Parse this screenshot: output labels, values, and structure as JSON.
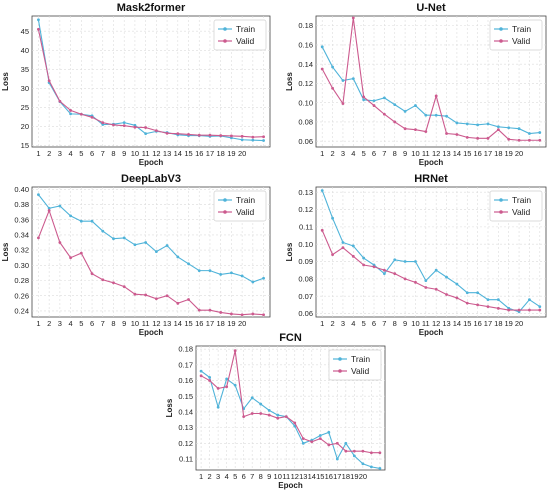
{
  "colors": {
    "train": "#4fb3d9",
    "valid": "#cc5a8e",
    "grid": "#dcdcdc"
  },
  "chart_data": [
    {
      "type": "line",
      "title": "Mask2former",
      "xlabel": "Epoch",
      "ylabel": "Loss",
      "x": [
        1,
        2,
        3,
        4,
        5,
        6,
        7,
        8,
        9,
        10,
        11,
        12,
        13,
        14,
        15,
        16,
        17,
        18,
        19,
        20,
        21,
        22
      ],
      "x_tick_labels": [
        "1",
        "2",
        "3",
        "4",
        "5",
        "6",
        "7",
        "8",
        "9",
        "10",
        "11",
        "12",
        "13",
        "14",
        "15",
        "16",
        "17",
        "18",
        "19",
        "20",
        "",
        ""
      ],
      "yticks": [
        15,
        20,
        25,
        30,
        35,
        40,
        45
      ],
      "ylim": [
        14.6,
        49
      ],
      "grid": true,
      "legend": "top-right",
      "series": [
        {
          "name": "Train",
          "values": [
            48,
            31.5,
            26.5,
            23.3,
            23.2,
            22.8,
            20.5,
            20.6,
            21,
            20.3,
            18.1,
            18.7,
            18.4,
            17.8,
            17.6,
            17.6,
            17.4,
            17.5,
            17,
            16.5,
            16.4,
            16.3
          ]
        },
        {
          "name": "Valid",
          "values": [
            45.5,
            32,
            26.6,
            24.2,
            23.2,
            22.4,
            21,
            20.4,
            20.2,
            19.8,
            19.7,
            18.9,
            18.2,
            18.1,
            17.9,
            17.7,
            17.7,
            17.6,
            17.5,
            17.4,
            17.2,
            17.3
          ]
        }
      ]
    },
    {
      "type": "line",
      "title": "U-Net",
      "xlabel": "Epoch",
      "ylabel": "Loss",
      "x": [
        1,
        2,
        3,
        4,
        5,
        6,
        7,
        8,
        9,
        10,
        11,
        12,
        13,
        14,
        15,
        16,
        17,
        18,
        19,
        20,
        21,
        22
      ],
      "x_tick_labels": [
        "1",
        "2",
        "3",
        "4",
        "5",
        "6",
        "7",
        "8",
        "9",
        "10",
        "11",
        "12",
        "13",
        "14",
        "15",
        "16",
        "17",
        "18",
        "19",
        "20",
        "",
        ""
      ],
      "yticks": [
        0.06,
        0.08,
        0.1,
        0.12,
        0.14,
        0.16,
        0.18
      ],
      "ylim": [
        0.054,
        0.19
      ],
      "grid": true,
      "legend": "top-right",
      "series": [
        {
          "name": "Train",
          "values": [
            0.158,
            0.137,
            0.123,
            0.125,
            0.103,
            0.102,
            0.105,
            0.098,
            0.091,
            0.097,
            0.087,
            0.087,
            0.086,
            0.079,
            0.078,
            0.077,
            0.078,
            0.075,
            0.074,
            0.073,
            0.068,
            0.069
          ]
        },
        {
          "name": "Valid",
          "values": [
            0.135,
            0.115,
            0.099,
            0.188,
            0.106,
            0.097,
            0.088,
            0.08,
            0.073,
            0.072,
            0.07,
            0.107,
            0.068,
            0.067,
            0.064,
            0.063,
            0.063,
            0.072,
            0.062,
            0.061,
            0.061,
            0.061
          ]
        }
      ]
    },
    {
      "type": "line",
      "title": "DeepLabV3",
      "xlabel": "Epoch",
      "ylabel": "Loss",
      "x": [
        1,
        2,
        3,
        4,
        5,
        6,
        7,
        8,
        9,
        10,
        11,
        12,
        13,
        14,
        15,
        16,
        17,
        18,
        19,
        20,
        21,
        22
      ],
      "x_tick_labels": [
        "1",
        "2",
        "3",
        "4",
        "5",
        "6",
        "7",
        "8",
        "9",
        "10",
        "11",
        "12",
        "13",
        "14",
        "15",
        "16",
        "17",
        "18",
        "19",
        "20",
        "",
        ""
      ],
      "yticks": [
        0.24,
        0.26,
        0.28,
        0.3,
        0.32,
        0.34,
        0.36,
        0.38,
        0.4
      ],
      "ylim": [
        0.232,
        0.403
      ],
      "grid": true,
      "legend": "top-right",
      "series": [
        {
          "name": "Train",
          "values": [
            0.393,
            0.375,
            0.378,
            0.365,
            0.358,
            0.358,
            0.345,
            0.335,
            0.336,
            0.327,
            0.33,
            0.318,
            0.326,
            0.311,
            0.302,
            0.293,
            0.293,
            0.288,
            0.29,
            0.286,
            0.278,
            0.283
          ]
        },
        {
          "name": "Valid",
          "values": [
            0.336,
            0.372,
            0.33,
            0.31,
            0.316,
            0.289,
            0.281,
            0.277,
            0.272,
            0.262,
            0.261,
            0.256,
            0.26,
            0.25,
            0.255,
            0.241,
            0.241,
            0.238,
            0.236,
            0.235,
            0.236,
            0.235
          ]
        }
      ]
    },
    {
      "type": "line",
      "title": "HRNet",
      "xlabel": "Epoch",
      "ylabel": "Loss",
      "x": [
        1,
        2,
        3,
        4,
        5,
        6,
        7,
        8,
        9,
        10,
        11,
        12,
        13,
        14,
        15,
        16,
        17,
        18,
        19,
        20,
        21,
        22
      ],
      "x_tick_labels": [
        "1",
        "2",
        "3",
        "4",
        "5",
        "6",
        "7",
        "8",
        "9",
        "10",
        "11",
        "12",
        "13",
        "14",
        "15",
        "16",
        "17",
        "18",
        "19",
        "20",
        "",
        ""
      ],
      "yticks": [
        0.06,
        0.07,
        0.08,
        0.09,
        0.1,
        0.11,
        0.12,
        0.13
      ],
      "ylim": [
        0.058,
        0.133
      ],
      "grid": true,
      "legend": "top-right",
      "series": [
        {
          "name": "Train",
          "values": [
            0.131,
            0.115,
            0.101,
            0.099,
            0.092,
            0.088,
            0.083,
            0.091,
            0.09,
            0.09,
            0.079,
            0.085,
            0.081,
            0.077,
            0.072,
            0.072,
            0.068,
            0.068,
            0.063,
            0.061,
            0.068,
            0.064
          ]
        },
        {
          "name": "Valid",
          "values": [
            0.108,
            0.094,
            0.098,
            0.093,
            0.088,
            0.087,
            0.085,
            0.083,
            0.08,
            0.078,
            0.075,
            0.074,
            0.071,
            0.069,
            0.066,
            0.065,
            0.064,
            0.063,
            0.062,
            0.062,
            0.062,
            0.062
          ]
        }
      ]
    },
    {
      "type": "line",
      "title": "FCN",
      "xlabel": "Epoch",
      "ylabel": "Loss",
      "x": [
        1,
        2,
        3,
        4,
        5,
        6,
        7,
        8,
        9,
        10,
        11,
        12,
        13,
        14,
        15,
        16,
        17,
        18,
        19,
        20,
        21,
        22
      ],
      "x_tick_labels": [
        "1",
        "2",
        "3",
        "4",
        "5",
        "6",
        "7",
        "8",
        "9",
        "10",
        "11",
        "12",
        "13",
        "14",
        "15",
        "16",
        "17",
        "18",
        "19",
        "20",
        "",
        ""
      ],
      "yticks": [
        0.11,
        0.12,
        0.13,
        0.14,
        0.15,
        0.16,
        0.17,
        0.18
      ],
      "ylim": [
        0.103,
        0.182
      ],
      "grid": true,
      "legend": "top-right",
      "series": [
        {
          "name": "Train",
          "values": [
            0.166,
            0.162,
            0.143,
            0.161,
            0.157,
            0.142,
            0.149,
            0.145,
            0.141,
            0.138,
            0.137,
            0.131,
            0.12,
            0.122,
            0.125,
            0.127,
            0.11,
            0.12,
            0.112,
            0.107,
            0.105,
            0.104
          ]
        },
        {
          "name": "Valid",
          "values": [
            0.163,
            0.16,
            0.155,
            0.156,
            0.179,
            0.137,
            0.139,
            0.139,
            0.138,
            0.136,
            0.137,
            0.133,
            0.123,
            0.121,
            0.123,
            0.119,
            0.12,
            0.115,
            0.115,
            0.115,
            0.114,
            0.114
          ]
        }
      ]
    }
  ]
}
